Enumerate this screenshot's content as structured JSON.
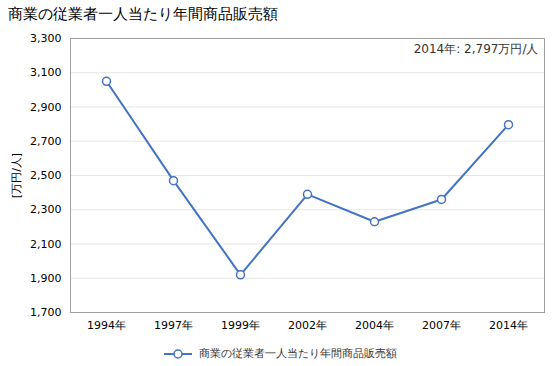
{
  "chart_data": {
    "type": "line",
    "title": "商業の従業者一人当たり年間商品販売額",
    "ylabel": "[万円/人]",
    "annotation": "2014年: 2,797万円/人",
    "categories": [
      "1994年",
      "1997年",
      "1999年",
      "2002年",
      "2004年",
      "2007年",
      "2014年"
    ],
    "series": [
      {
        "name": "商業の従業者一人当たり年間商品販売額",
        "color": "#4472C4",
        "marker": "circle",
        "values": [
          3050,
          2470,
          1920,
          2390,
          2230,
          2360,
          2797
        ]
      }
    ],
    "ylim": [
      1700,
      3300
    ],
    "yticks": [
      {
        "value": 1700,
        "label": "1,700"
      },
      {
        "value": 1900,
        "label": "1,900"
      },
      {
        "value": 2100,
        "label": "2,100"
      },
      {
        "value": 2300,
        "label": "2,300"
      },
      {
        "value": 2500,
        "label": "2,500"
      },
      {
        "value": 2700,
        "label": "2,700"
      },
      {
        "value": 2900,
        "label": "2,900"
      },
      {
        "value": 3100,
        "label": "3,100"
      },
      {
        "value": 3300,
        "label": "3,300"
      }
    ],
    "grid": true,
    "legend": "bottom"
  }
}
